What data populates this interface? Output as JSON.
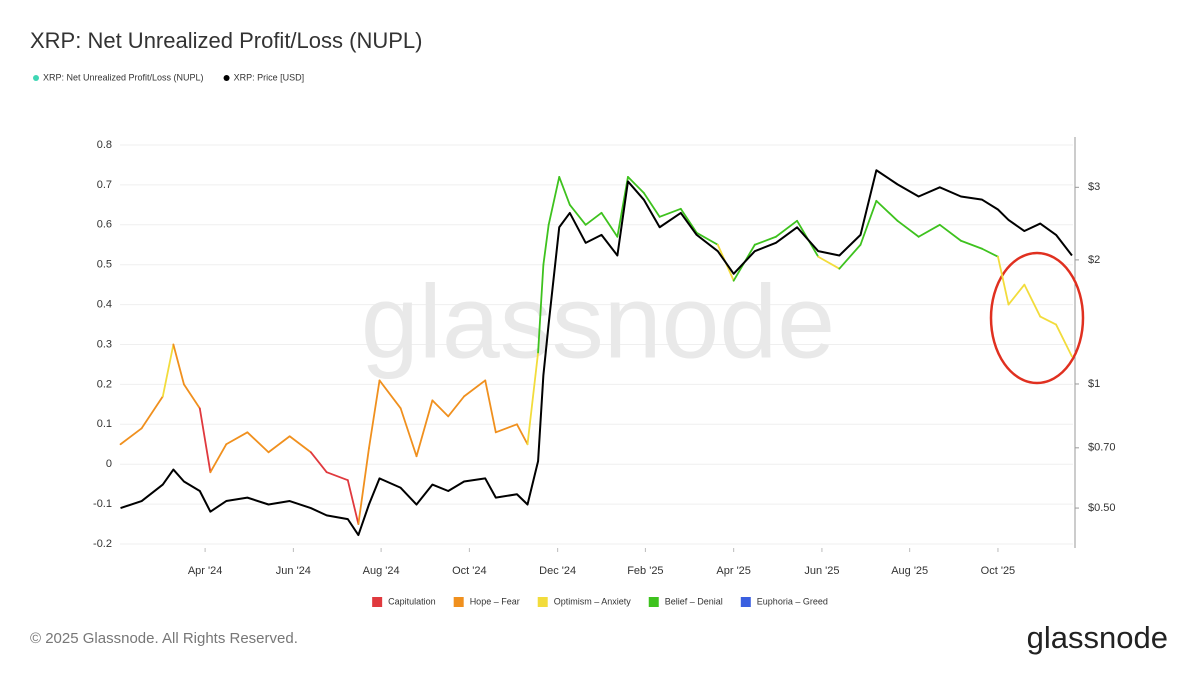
{
  "chart_data": {
    "type": "line",
    "title": "XRP: Net Unrealized Profit/Loss (NUPL)",
    "watermark": "glassnode",
    "footer": "© 2025 Glassnode. All Rights Reserved.",
    "logo": "glassnode",
    "grid": true,
    "x": [
      2024.09,
      2024.13,
      2024.17,
      2024.19,
      2024.21,
      2024.24,
      2024.26,
      2024.29,
      2024.33,
      2024.37,
      2024.41,
      2024.45,
      2024.48,
      2024.52,
      2024.54,
      2024.56,
      2024.58,
      2024.62,
      2024.65,
      2024.68,
      2024.71,
      2024.74,
      2024.78,
      2024.8,
      2024.84,
      2024.86,
      2024.88,
      2024.89,
      2024.9,
      2024.92,
      2024.94,
      2024.97,
      2025.0,
      2025.03,
      2025.05,
      2025.08,
      2025.11,
      2025.15,
      2025.18,
      2025.22,
      2025.25,
      2025.29,
      2025.33,
      2025.37,
      2025.41,
      2025.45,
      2025.49,
      2025.52,
      2025.56,
      2025.6,
      2025.64,
      2025.68,
      2025.72,
      2025.75,
      2025.77,
      2025.8,
      2025.83,
      2025.86,
      2025.89
    ],
    "xlim": [
      2024.089,
      2025.892
    ],
    "xticks": [
      {
        "value": 2024.25,
        "label": "Apr '24"
      },
      {
        "value": 2024.417,
        "label": "Jun '24"
      },
      {
        "value": 2024.583,
        "label": "Aug '24"
      },
      {
        "value": 2024.75,
        "label": "Oct '24"
      },
      {
        "value": 2024.917,
        "label": "Dec '24"
      },
      {
        "value": 2025.083,
        "label": "Feb '25"
      },
      {
        "value": 2025.25,
        "label": "Apr '25"
      },
      {
        "value": 2025.417,
        "label": "Jun '25"
      },
      {
        "value": 2025.583,
        "label": "Aug '25"
      },
      {
        "value": 2025.75,
        "label": "Oct '25"
      }
    ],
    "ylim": [
      -0.21,
      0.8
    ],
    "yticks": [
      -0.2,
      -0.1,
      0,
      0.1,
      0.2,
      0.3,
      0.4,
      0.5,
      0.6,
      0.7,
      0.8
    ],
    "y2lim": [
      0.4,
      3.8
    ],
    "y2log": true,
    "y2ticks": [
      {
        "value": 0.5,
        "label": "$0.50"
      },
      {
        "value": 0.7,
        "label": "$0.70"
      },
      {
        "value": 1,
        "label": "$1"
      },
      {
        "value": 2,
        "label": "$2"
      },
      {
        "value": 3,
        "label": "$3"
      }
    ],
    "zones": [
      {
        "name": "Capitulation",
        "color": "#e0393e"
      },
      {
        "name": "Hope – Fear",
        "color": "#f0901e"
      },
      {
        "name": "Optimism – Anxiety",
        "color": "#f2dc3c"
      },
      {
        "name": "Belief – Denial",
        "color": "#3ec21e"
      },
      {
        "name": "Euphoria – Greed",
        "color": "#3a5fe0"
      }
    ],
    "series": [
      {
        "name": "XRP: Net Unrealized Profit/Loss (NUPL)",
        "color": "#3fd6b4",
        "values": [
          0.05,
          0.09,
          0.17,
          0.3,
          0.2,
          0.14,
          -0.02,
          0.05,
          0.08,
          0.03,
          0.07,
          0.03,
          -0.02,
          -0.04,
          -0.15,
          0.04,
          0.21,
          0.14,
          0.02,
          0.16,
          0.12,
          0.17,
          0.21,
          0.08,
          0.1,
          0.05,
          0.28,
          0.5,
          0.6,
          0.72,
          0.65,
          0.6,
          0.63,
          0.57,
          0.72,
          0.68,
          0.62,
          0.64,
          0.58,
          0.55,
          0.46,
          0.55,
          0.57,
          0.61,
          0.52,
          0.49,
          0.55,
          0.66,
          0.61,
          0.57,
          0.6,
          0.56,
          0.54,
          0.52,
          0.4,
          0.45,
          0.37,
          0.35,
          0.27
        ],
        "zones": [
          1,
          1,
          1,
          2,
          1,
          1,
          0,
          1,
          1,
          1,
          1,
          1,
          0,
          0,
          0,
          1,
          1,
          1,
          1,
          1,
          1,
          1,
          1,
          1,
          1,
          1,
          2,
          3,
          3,
          3,
          3,
          3,
          3,
          3,
          3,
          3,
          3,
          3,
          3,
          3,
          2,
          3,
          3,
          3,
          3,
          2,
          3,
          3,
          3,
          3,
          3,
          3,
          3,
          3,
          2,
          2,
          2,
          2,
          2
        ]
      },
      {
        "name": "XRP: Price [USD]",
        "color": "#000000",
        "axis": "y2",
        "values": [
          0.5,
          0.52,
          0.57,
          0.62,
          0.58,
          0.55,
          0.49,
          0.52,
          0.53,
          0.51,
          0.52,
          0.5,
          0.48,
          0.47,
          0.43,
          0.51,
          0.59,
          0.56,
          0.51,
          0.57,
          0.55,
          0.58,
          0.59,
          0.53,
          0.54,
          0.51,
          0.65,
          1.05,
          1.4,
          2.4,
          2.6,
          2.2,
          2.3,
          2.05,
          3.1,
          2.8,
          2.4,
          2.6,
          2.3,
          2.1,
          1.85,
          2.1,
          2.2,
          2.4,
          2.1,
          2.05,
          2.3,
          3.3,
          3.05,
          2.85,
          3.0,
          2.85,
          2.8,
          2.65,
          2.5,
          2.35,
          2.45,
          2.3,
          2.05
        ]
      }
    ]
  }
}
